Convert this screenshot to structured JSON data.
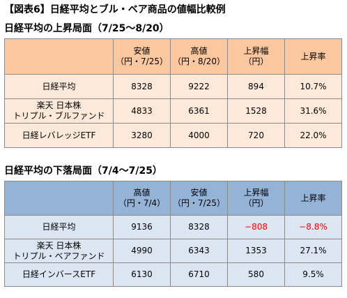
{
  "figure_title": "【図表6】日経平均とブル・ベア商品の値幅比較例",
  "rise_section": {
    "title": "日経平均の上昇局面（7/25～8/20）",
    "headers": [
      [
        "安値",
        "（円・7/25）"
      ],
      [
        "高値",
        "（円・8/20）"
      ],
      [
        "上昇幅",
        "（円）"
      ],
      [
        "上昇率"
      ]
    ],
    "rows": [
      {
        "label": [
          "日経平均"
        ],
        "values": [
          "8328",
          "9222",
          "894",
          "10.7%"
        ]
      },
      {
        "label": [
          "楽天 日本株",
          "トリプル・ブルファンド"
        ],
        "values": [
          "4833",
          "6361",
          "1528",
          "31.6%"
        ]
      },
      {
        "label": [
          "日経レバレッジETF"
        ],
        "values": [
          "3280",
          "4000",
          "720",
          "22.0%"
        ]
      }
    ]
  },
  "fall_section": {
    "title": "日経平均の下落局面（7/4～7/25）",
    "headers": [
      [
        "高値",
        "（円・7/4）"
      ],
      [
        "安値",
        "（円・7/25）"
      ],
      [
        "上昇幅",
        "（円）"
      ],
      [
        "上昇率"
      ]
    ],
    "rows": [
      {
        "label": [
          "日経平均"
        ],
        "values": [
          "9136",
          "8328",
          "−808",
          "−8.8%"
        ]
      },
      {
        "label": [
          "楽天 日本株",
          "トリプル・ベアファンド"
        ],
        "values": [
          "4990",
          "6343",
          "1353",
          "27.1%"
        ]
      },
      {
        "label": [
          "日経インバースETF"
        ],
        "values": [
          "6130",
          "6710",
          "580",
          "9.5%"
        ]
      }
    ]
  },
  "colors": {
    "rise_header": "#fac79f",
    "rise_body": "#fde9d9",
    "fall_header": "#94b3d7",
    "fall_body": "#dce6f2",
    "negative": "#ff0000"
  }
}
